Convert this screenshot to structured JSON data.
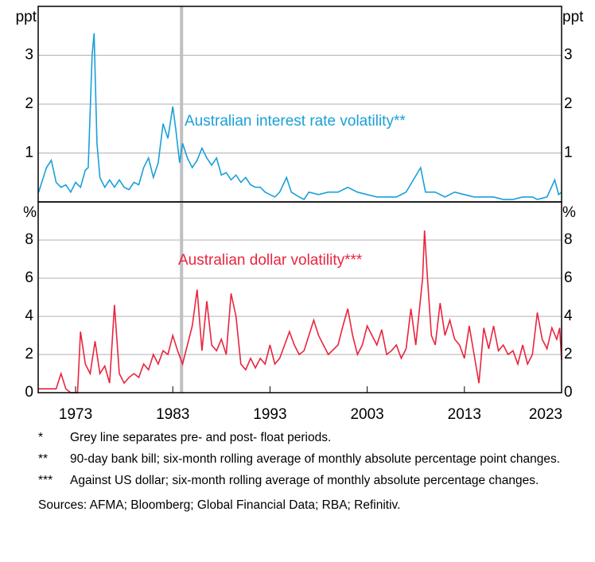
{
  "chart_data": [
    {
      "type": "line",
      "unit_label": "ppt",
      "annotation": "Australian interest rate volatility**",
      "xlim": [
        1969.15,
        2023
      ],
      "ylim": [
        0,
        4
      ],
      "yticks": [
        1,
        2,
        3
      ],
      "grid": true,
      "vline_x": 1983.9,
      "series": [
        {
          "name": "Australian interest rate volatility",
          "color": "#1aa0d8",
          "x": [
            1969.2,
            1970,
            1970.5,
            1971,
            1971.5,
            1972,
            1972.5,
            1973,
            1973.5,
            1974,
            1974.3,
            1974.7,
            1974.9,
            1975.2,
            1975.5,
            1976,
            1976.5,
            1977,
            1977.5,
            1978,
            1978.5,
            1979,
            1979.5,
            1980,
            1980.5,
            1981,
            1981.5,
            1982,
            1982.5,
            1983,
            1983.3,
            1983.7,
            1984,
            1984.5,
            1985,
            1985.5,
            1986,
            1986.5,
            1987,
            1987.5,
            1988,
            1988.5,
            1989,
            1989.5,
            1990,
            1990.5,
            1991,
            1991.5,
            1992,
            1992.5,
            1993,
            1993.5,
            1994,
            1994.7,
            1995.2,
            1996,
            1996.5,
            1997,
            1998,
            1999,
            2000,
            2001,
            2002,
            2003,
            2004,
            2005,
            2006,
            2007,
            2008.5,
            2009,
            2010,
            2011,
            2012,
            2013,
            2014,
            2015,
            2016,
            2017,
            2018,
            2019,
            2020,
            2020.5,
            2021.5,
            2022.3,
            2022.7,
            2023
          ],
          "values": [
            0.2,
            0.7,
            0.85,
            0.4,
            0.3,
            0.35,
            0.2,
            0.4,
            0.3,
            0.65,
            0.7,
            3.0,
            3.45,
            1.2,
            0.5,
            0.3,
            0.45,
            0.3,
            0.45,
            0.3,
            0.25,
            0.4,
            0.35,
            0.7,
            0.9,
            0.5,
            0.8,
            1.6,
            1.3,
            1.95,
            1.5,
            0.8,
            1.2,
            0.9,
            0.7,
            0.85,
            1.1,
            0.9,
            0.75,
            0.9,
            0.55,
            0.6,
            0.45,
            0.55,
            0.4,
            0.5,
            0.35,
            0.3,
            0.3,
            0.2,
            0.15,
            0.1,
            0.2,
            0.5,
            0.2,
            0.1,
            0.05,
            0.2,
            0.15,
            0.2,
            0.2,
            0.3,
            0.2,
            0.15,
            0.1,
            0.1,
            0.1,
            0.2,
            0.7,
            0.2,
            0.2,
            0.1,
            0.2,
            0.15,
            0.1,
            0.1,
            0.1,
            0.05,
            0.05,
            0.1,
            0.1,
            0.05,
            0.1,
            0.45,
            0.15,
            0.2
          ]
        }
      ]
    },
    {
      "type": "line",
      "unit_label": "%",
      "annotation": "Australian dollar volatility***",
      "xlim": [
        1969.15,
        2023
      ],
      "ylim": [
        0,
        10
      ],
      "yticks": [
        0,
        2,
        4,
        6,
        8
      ],
      "grid": true,
      "vline_x": 1983.9,
      "xticks": [
        1973,
        1983,
        1993,
        2003,
        2013,
        2023
      ],
      "series": [
        {
          "name": "Australian dollar volatility",
          "color": "#e8253f",
          "x": [
            1969.2,
            1970,
            1971,
            1971.5,
            1972,
            1972.5,
            1973.2,
            1973.5,
            1974,
            1974.5,
            1975,
            1975.5,
            1976,
            1976.5,
            1977,
            1977.5,
            1978,
            1978.5,
            1979,
            1979.5,
            1980,
            1980.5,
            1981,
            1981.5,
            1982,
            1982.5,
            1983,
            1983.5,
            1984,
            1984.5,
            1985,
            1985.5,
            1986,
            1986.5,
            1987,
            1987.5,
            1988,
            1988.5,
            1989,
            1989.5,
            1990,
            1990.5,
            1991,
            1991.5,
            1992,
            1992.5,
            1993,
            1993.5,
            1994,
            1994.5,
            1995,
            1995.5,
            1996,
            1996.5,
            1997,
            1997.5,
            1998,
            1998.5,
            1999,
            2000,
            2000.5,
            2001,
            2001.5,
            2002,
            2002.5,
            2003,
            2003.5,
            2004,
            2004.5,
            2005,
            2005.5,
            2006,
            2006.5,
            2007,
            2007.5,
            2008,
            2008.7,
            2008.9,
            2009.2,
            2009.6,
            2010,
            2010.5,
            2011,
            2011.5,
            2012,
            2012.5,
            2013,
            2013.5,
            2014,
            2014.5,
            2015,
            2015.5,
            2016,
            2016.5,
            2017,
            2017.5,
            2018,
            2018.5,
            2019,
            2019.5,
            2020,
            2020.5,
            2021,
            2021.5,
            2022,
            2022.5,
            2022.8,
            2023
          ],
          "values": [
            0.2,
            0.2,
            0.2,
            1.0,
            0.2,
            0,
            0,
            3.2,
            1.5,
            1.0,
            2.7,
            1.0,
            1.4,
            0.5,
            4.6,
            1.0,
            0.5,
            0.8,
            1.0,
            0.8,
            1.5,
            1.2,
            2.0,
            1.5,
            2.2,
            2.0,
            3.0,
            2.2,
            1.5,
            2.5,
            3.5,
            5.4,
            2.2,
            4.8,
            2.5,
            2.2,
            2.8,
            2.0,
            5.2,
            4.0,
            1.5,
            1.2,
            1.8,
            1.3,
            1.8,
            1.5,
            2.5,
            1.5,
            1.8,
            2.5,
            3.2,
            2.5,
            2.0,
            2.2,
            3.0,
            3.8,
            3.0,
            2.5,
            2.0,
            2.5,
            3.5,
            4.4,
            3.0,
            2.0,
            2.5,
            3.5,
            3.0,
            2.5,
            3.3,
            2.0,
            2.2,
            2.5,
            1.8,
            2.3,
            4.4,
            2.5,
            6.0,
            8.5,
            6.0,
            3.0,
            2.5,
            4.7,
            3.0,
            3.8,
            2.8,
            2.5,
            1.8,
            3.5,
            2.0,
            0.5,
            3.4,
            2.3,
            3.5,
            2.2,
            2.5,
            2.0,
            2.2,
            1.5,
            2.5,
            1.5,
            2.0,
            4.2,
            2.8,
            2.3,
            3.4,
            2.8,
            3.4,
            1.7
          ]
        }
      ]
    }
  ],
  "notes": [
    {
      "marker": "*",
      "text": "Grey line separates pre- and post- float periods."
    },
    {
      "marker": "**",
      "text": "90-day bank bill; six-month rolling average of monthly absolute percentage point changes."
    },
    {
      "marker": "***",
      "text": "Against US dollar; six-month rolling average of monthly absolute percentage changes."
    }
  ],
  "sources": "Sources: AFMA; Bloomberg; Global Financial Data; RBA; Refinitiv."
}
